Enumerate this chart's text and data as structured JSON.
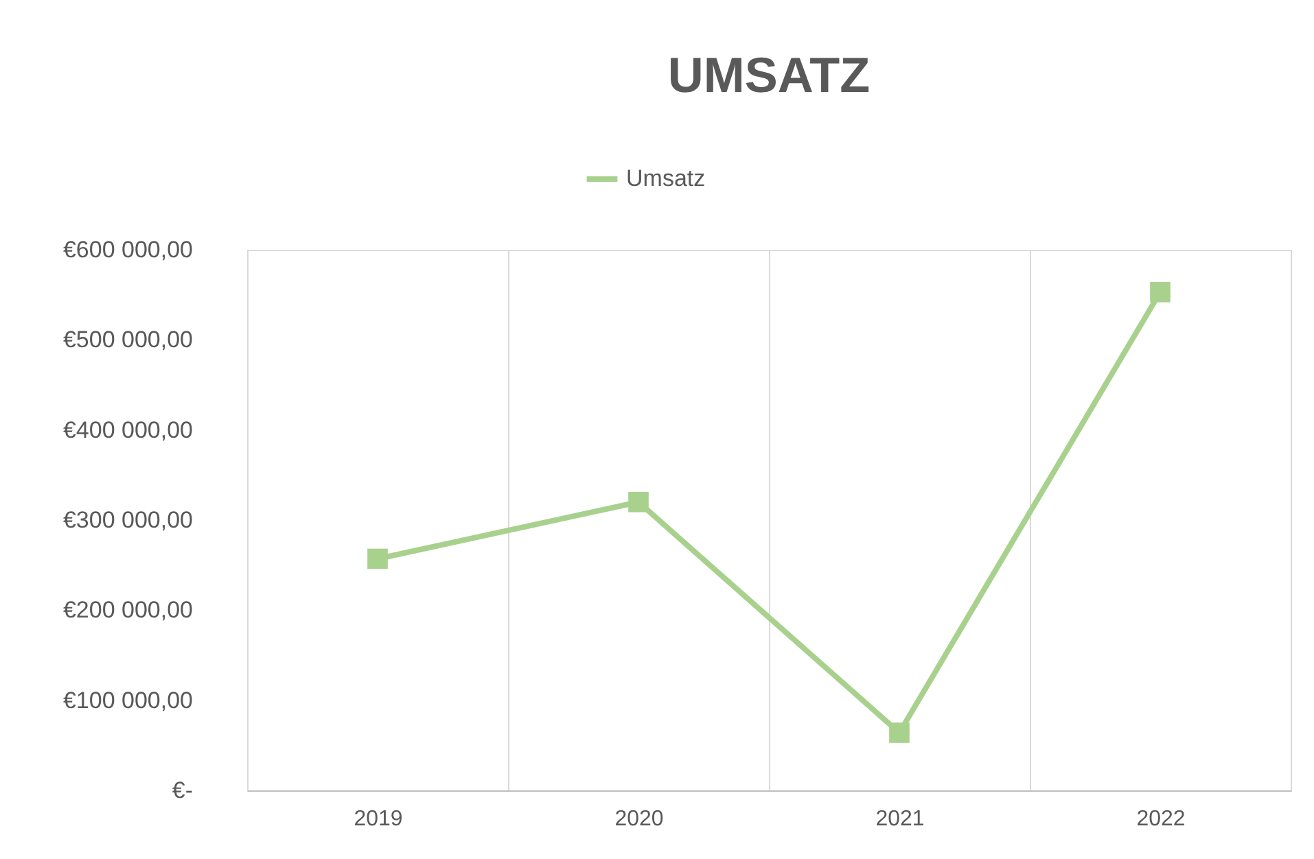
{
  "chart_data": {
    "type": "line",
    "title": "UMSATZ",
    "categories": [
      "2019",
      "2020",
      "2021",
      "2022"
    ],
    "series": [
      {
        "name": "Umsatz",
        "color": "#a9d18e",
        "values": [
          257000,
          320000,
          64000,
          553000
        ]
      }
    ],
    "ylim": [
      0,
      600000
    ],
    "yticks": [
      {
        "value": 0,
        "label": "€-"
      },
      {
        "value": 100000,
        "label": "€100 000,00"
      },
      {
        "value": 200000,
        "label": "€200 000,00"
      },
      {
        "value": 300000,
        "label": "€300 000,00"
      },
      {
        "value": 400000,
        "label": "€400 000,00"
      },
      {
        "value": 500000,
        "label": "€500 000,00"
      },
      {
        "value": 600000,
        "label": "€600 000,00"
      }
    ],
    "grid": "x",
    "legend": "top",
    "marker": "square",
    "line_style": "solid"
  }
}
